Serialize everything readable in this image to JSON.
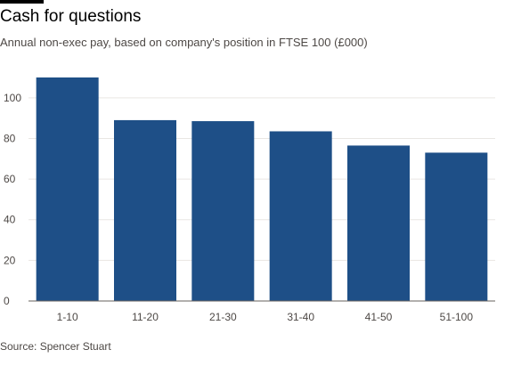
{
  "title": "Cash for questions",
  "subtitle": "Annual non-exec pay, based on company's position in FTSE 100 (£000)",
  "source": "Source: Spencer Stuart",
  "colors": {
    "bar": "#1e4f87",
    "grid": "#e9e6e3",
    "baseline": "#66605c"
  },
  "chart_data": {
    "type": "bar",
    "title": "Cash for questions",
    "subtitle": "Annual non-exec pay, based on company's position in FTSE 100 (£000)",
    "categories": [
      "1-10",
      "11-20",
      "21-30",
      "31-40",
      "41-50",
      "51-100"
    ],
    "values": [
      110,
      89,
      88.5,
      83.5,
      76.5,
      73
    ],
    "xlabel": "",
    "ylabel": "",
    "ylim": [
      0,
      110
    ],
    "yticks": [
      0,
      20,
      40,
      60,
      80,
      100
    ],
    "grid": true
  }
}
